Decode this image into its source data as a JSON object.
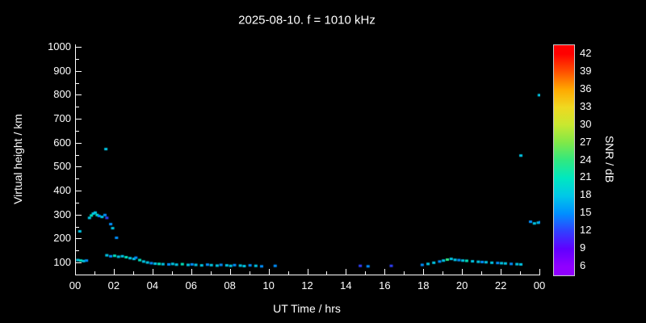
{
  "title": "2025-08-10. f = 1010 kHz",
  "colors": {
    "background": "#000000",
    "foreground": "#ffffff"
  },
  "x_axis": {
    "label": "UT Time / hrs",
    "min": 0,
    "max": 24,
    "ticks": [
      {
        "v": 0,
        "t": "00"
      },
      {
        "v": 2,
        "t": "02"
      },
      {
        "v": 4,
        "t": "04"
      },
      {
        "v": 6,
        "t": "06"
      },
      {
        "v": 8,
        "t": "08"
      },
      {
        "v": 10,
        "t": "10"
      },
      {
        "v": 12,
        "t": "12"
      },
      {
        "v": 14,
        "t": "14"
      },
      {
        "v": 16,
        "t": "16"
      },
      {
        "v": 18,
        "t": "18"
      },
      {
        "v": 20,
        "t": "20"
      },
      {
        "v": 22,
        "t": "22"
      },
      {
        "v": 24,
        "t": "00"
      }
    ],
    "minor": [
      1,
      3,
      5,
      7,
      9,
      11,
      13,
      15,
      17,
      19,
      21,
      23
    ]
  },
  "y_axis": {
    "label": "Virtual height / km",
    "min": 50,
    "max": 1010,
    "ticks": [
      {
        "v": 100,
        "t": "100"
      },
      {
        "v": 200,
        "t": "200"
      },
      {
        "v": 300,
        "t": "300"
      },
      {
        "v": 400,
        "t": "400"
      },
      {
        "v": 500,
        "t": "500"
      },
      {
        "v": 600,
        "t": "600"
      },
      {
        "v": 700,
        "t": "700"
      },
      {
        "v": 800,
        "t": "800"
      },
      {
        "v": 900,
        "t": "900"
      },
      {
        "v": 1000,
        "t": "1000"
      }
    ],
    "minor": [
      150,
      250,
      350,
      450,
      550,
      650,
      750,
      850,
      950
    ]
  },
  "colorbar": {
    "label": "SNR / dB",
    "min": 4.5,
    "max": 43.5,
    "ticks": [
      6,
      9,
      12,
      15,
      18,
      21,
      24,
      27,
      30,
      33,
      36,
      39,
      42
    ],
    "stops": [
      {
        "v": 6,
        "c": "#9000ff"
      },
      {
        "v": 9,
        "c": "#6000ff"
      },
      {
        "v": 12,
        "c": "#3040ff"
      },
      {
        "v": 15,
        "c": "#0090ff"
      },
      {
        "v": 18,
        "c": "#00c8e8"
      },
      {
        "v": 21,
        "c": "#00e8c0"
      },
      {
        "v": 24,
        "c": "#30e880"
      },
      {
        "v": 27,
        "c": "#80e848"
      },
      {
        "v": 30,
        "c": "#c8e830"
      },
      {
        "v": 33,
        "c": "#f0d820"
      },
      {
        "v": 36,
        "c": "#ffa800"
      },
      {
        "v": 39,
        "c": "#ff5000"
      },
      {
        "v": 42,
        "c": "#ff0000"
      }
    ]
  },
  "chart_data": {
    "type": "scatter",
    "title": "2025-08-10. f = 1010 kHz",
    "xlabel": "UT Time / hrs",
    "ylabel": "Virtual height / km",
    "zlabel": "SNR / dB",
    "xlim": [
      0,
      24
    ],
    "ylim": [
      50,
      1010
    ],
    "zlim": [
      4.5,
      43.5
    ],
    "grid": false,
    "points_format": "[UT_hours, virtual_height_km, snr_db]",
    "points": [
      [
        0.1,
        112,
        18
      ],
      [
        0.25,
        110,
        21
      ],
      [
        0.4,
        108,
        18
      ],
      [
        0.55,
        110,
        15
      ],
      [
        0.2,
        232,
        18
      ],
      [
        0.7,
        288,
        18
      ],
      [
        0.8,
        298,
        21
      ],
      [
        0.9,
        306,
        18
      ],
      [
        1.0,
        310,
        18
      ],
      [
        1.1,
        300,
        21
      ],
      [
        1.2,
        296,
        15
      ],
      [
        1.35,
        292,
        18
      ],
      [
        1.5,
        300,
        15
      ],
      [
        1.6,
        288,
        12
      ],
      [
        1.55,
        575,
        18
      ],
      [
        1.8,
        262,
        15
      ],
      [
        1.9,
        245,
        18
      ],
      [
        2.1,
        205,
        15
      ],
      [
        1.6,
        132,
        18
      ],
      [
        1.8,
        128,
        15
      ],
      [
        2.0,
        130,
        21
      ],
      [
        2.2,
        126,
        18
      ],
      [
        2.4,
        128,
        18
      ],
      [
        2.6,
        124,
        21
      ],
      [
        2.8,
        120,
        18
      ],
      [
        3.0,
        117,
        18
      ],
      [
        3.1,
        122,
        15
      ],
      [
        3.3,
        112,
        21
      ],
      [
        3.5,
        106,
        18
      ],
      [
        3.7,
        102,
        18
      ],
      [
        3.9,
        99,
        15
      ],
      [
        4.1,
        97,
        18
      ],
      [
        4.3,
        96,
        21
      ],
      [
        4.5,
        95,
        18
      ],
      [
        4.8,
        94,
        15
      ],
      [
        5.0,
        96,
        18
      ],
      [
        5.2,
        93,
        18
      ],
      [
        5.5,
        95,
        21
      ],
      [
        5.8,
        92,
        18
      ],
      [
        6.0,
        94,
        15
      ],
      [
        6.2,
        92,
        18
      ],
      [
        6.5,
        90,
        18
      ],
      [
        6.8,
        93,
        15
      ],
      [
        7.0,
        91,
        18
      ],
      [
        7.3,
        89,
        18
      ],
      [
        7.5,
        92,
        15
      ],
      [
        7.8,
        90,
        18
      ],
      [
        8.0,
        88,
        18
      ],
      [
        8.2,
        91,
        15
      ],
      [
        8.5,
        89,
        18
      ],
      [
        8.7,
        87,
        18
      ],
      [
        9.0,
        90,
        15
      ],
      [
        9.3,
        88,
        18
      ],
      [
        9.6,
        86,
        15
      ],
      [
        10.3,
        88,
        15
      ],
      [
        14.7,
        88,
        12
      ],
      [
        15.1,
        86,
        15
      ],
      [
        16.3,
        88,
        12
      ],
      [
        17.9,
        92,
        15
      ],
      [
        18.2,
        96,
        18
      ],
      [
        18.5,
        101,
        18
      ],
      [
        18.8,
        106,
        15
      ],
      [
        19.0,
        110,
        18
      ],
      [
        19.2,
        114,
        24
      ],
      [
        19.4,
        117,
        18
      ],
      [
        19.6,
        113,
        18
      ],
      [
        19.8,
        112,
        15
      ],
      [
        20.0,
        110,
        18
      ],
      [
        20.2,
        109,
        21
      ],
      [
        20.5,
        107,
        18
      ],
      [
        20.8,
        105,
        18
      ],
      [
        21.0,
        104,
        15
      ],
      [
        21.2,
        103,
        18
      ],
      [
        21.5,
        101,
        18
      ],
      [
        21.8,
        100,
        15
      ],
      [
        22.0,
        99,
        18
      ],
      [
        22.2,
        98,
        18
      ],
      [
        22.5,
        96,
        15
      ],
      [
        22.8,
        95,
        18
      ],
      [
        23.0,
        94,
        18
      ],
      [
        23.0,
        548,
        18
      ],
      [
        23.5,
        272,
        15
      ],
      [
        23.7,
        265,
        18
      ],
      [
        23.9,
        268,
        18
      ],
      [
        24.0,
        270,
        15
      ],
      [
        23.95,
        800,
        18
      ]
    ]
  }
}
